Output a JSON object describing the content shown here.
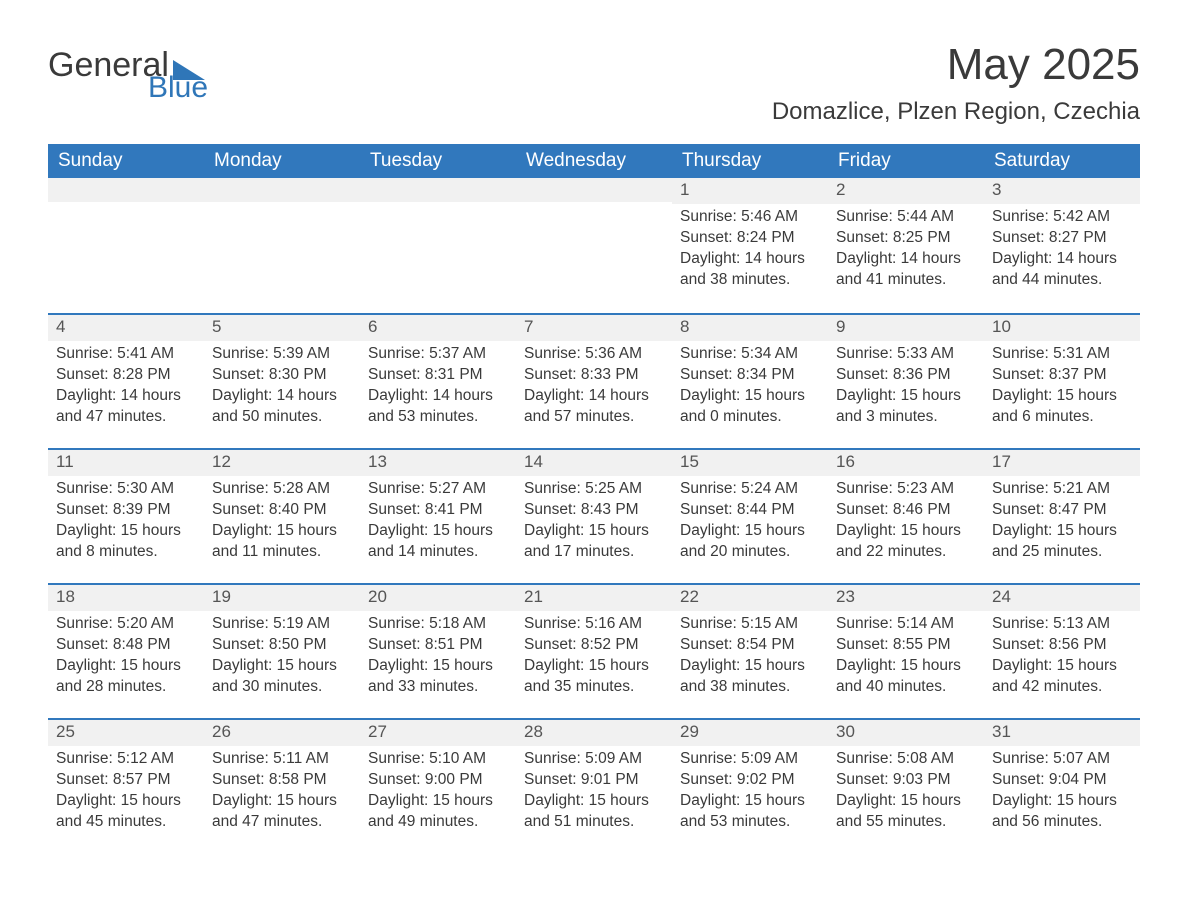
{
  "brand": {
    "part1": "General",
    "part2": "Blue"
  },
  "title": "May 2025",
  "subtitle": "Domazlice, Plzen Region, Czechia",
  "colors": {
    "header_bg": "#3178bd",
    "header_fg": "#ffffff",
    "row_border": "#3178bd",
    "daynum_bg": "#f1f1f1",
    "text": "#3a3a3a",
    "brand_blue": "#2f76b8"
  },
  "typography": {
    "title_fontsize": 44,
    "subtitle_fontsize": 24,
    "header_fontsize": 19,
    "body_fontsize": 15.5,
    "daynum_fontsize": 17
  },
  "dayLabels": [
    "Sunday",
    "Monday",
    "Tuesday",
    "Wednesday",
    "Thursday",
    "Friday",
    "Saturday"
  ],
  "labels": {
    "sunrise": "Sunrise: ",
    "sunset": "Sunset: ",
    "daylight": "Daylight: "
  },
  "weeks": [
    [
      null,
      null,
      null,
      null,
      {
        "n": "1",
        "sunrise": "5:46 AM",
        "sunset": "8:24 PM",
        "daylight": "14 hours and 38 minutes."
      },
      {
        "n": "2",
        "sunrise": "5:44 AM",
        "sunset": "8:25 PM",
        "daylight": "14 hours and 41 minutes."
      },
      {
        "n": "3",
        "sunrise": "5:42 AM",
        "sunset": "8:27 PM",
        "daylight": "14 hours and 44 minutes."
      }
    ],
    [
      {
        "n": "4",
        "sunrise": "5:41 AM",
        "sunset": "8:28 PM",
        "daylight": "14 hours and 47 minutes."
      },
      {
        "n": "5",
        "sunrise": "5:39 AM",
        "sunset": "8:30 PM",
        "daylight": "14 hours and 50 minutes."
      },
      {
        "n": "6",
        "sunrise": "5:37 AM",
        "sunset": "8:31 PM",
        "daylight": "14 hours and 53 minutes."
      },
      {
        "n": "7",
        "sunrise": "5:36 AM",
        "sunset": "8:33 PM",
        "daylight": "14 hours and 57 minutes."
      },
      {
        "n": "8",
        "sunrise": "5:34 AM",
        "sunset": "8:34 PM",
        "daylight": "15 hours and 0 minutes."
      },
      {
        "n": "9",
        "sunrise": "5:33 AM",
        "sunset": "8:36 PM",
        "daylight": "15 hours and 3 minutes."
      },
      {
        "n": "10",
        "sunrise": "5:31 AM",
        "sunset": "8:37 PM",
        "daylight": "15 hours and 6 minutes."
      }
    ],
    [
      {
        "n": "11",
        "sunrise": "5:30 AM",
        "sunset": "8:39 PM",
        "daylight": "15 hours and 8 minutes."
      },
      {
        "n": "12",
        "sunrise": "5:28 AM",
        "sunset": "8:40 PM",
        "daylight": "15 hours and 11 minutes."
      },
      {
        "n": "13",
        "sunrise": "5:27 AM",
        "sunset": "8:41 PM",
        "daylight": "15 hours and 14 minutes."
      },
      {
        "n": "14",
        "sunrise": "5:25 AM",
        "sunset": "8:43 PM",
        "daylight": "15 hours and 17 minutes."
      },
      {
        "n": "15",
        "sunrise": "5:24 AM",
        "sunset": "8:44 PM",
        "daylight": "15 hours and 20 minutes."
      },
      {
        "n": "16",
        "sunrise": "5:23 AM",
        "sunset": "8:46 PM",
        "daylight": "15 hours and 22 minutes."
      },
      {
        "n": "17",
        "sunrise": "5:21 AM",
        "sunset": "8:47 PM",
        "daylight": "15 hours and 25 minutes."
      }
    ],
    [
      {
        "n": "18",
        "sunrise": "5:20 AM",
        "sunset": "8:48 PM",
        "daylight": "15 hours and 28 minutes."
      },
      {
        "n": "19",
        "sunrise": "5:19 AM",
        "sunset": "8:50 PM",
        "daylight": "15 hours and 30 minutes."
      },
      {
        "n": "20",
        "sunrise": "5:18 AM",
        "sunset": "8:51 PM",
        "daylight": "15 hours and 33 minutes."
      },
      {
        "n": "21",
        "sunrise": "5:16 AM",
        "sunset": "8:52 PM",
        "daylight": "15 hours and 35 minutes."
      },
      {
        "n": "22",
        "sunrise": "5:15 AM",
        "sunset": "8:54 PM",
        "daylight": "15 hours and 38 minutes."
      },
      {
        "n": "23",
        "sunrise": "5:14 AM",
        "sunset": "8:55 PM",
        "daylight": "15 hours and 40 minutes."
      },
      {
        "n": "24",
        "sunrise": "5:13 AM",
        "sunset": "8:56 PM",
        "daylight": "15 hours and 42 minutes."
      }
    ],
    [
      {
        "n": "25",
        "sunrise": "5:12 AM",
        "sunset": "8:57 PM",
        "daylight": "15 hours and 45 minutes."
      },
      {
        "n": "26",
        "sunrise": "5:11 AM",
        "sunset": "8:58 PM",
        "daylight": "15 hours and 47 minutes."
      },
      {
        "n": "27",
        "sunrise": "5:10 AM",
        "sunset": "9:00 PM",
        "daylight": "15 hours and 49 minutes."
      },
      {
        "n": "28",
        "sunrise": "5:09 AM",
        "sunset": "9:01 PM",
        "daylight": "15 hours and 51 minutes."
      },
      {
        "n": "29",
        "sunrise": "5:09 AM",
        "sunset": "9:02 PM",
        "daylight": "15 hours and 53 minutes."
      },
      {
        "n": "30",
        "sunrise": "5:08 AM",
        "sunset": "9:03 PM",
        "daylight": "15 hours and 55 minutes."
      },
      {
        "n": "31",
        "sunrise": "5:07 AM",
        "sunset": "9:04 PM",
        "daylight": "15 hours and 56 minutes."
      }
    ]
  ]
}
